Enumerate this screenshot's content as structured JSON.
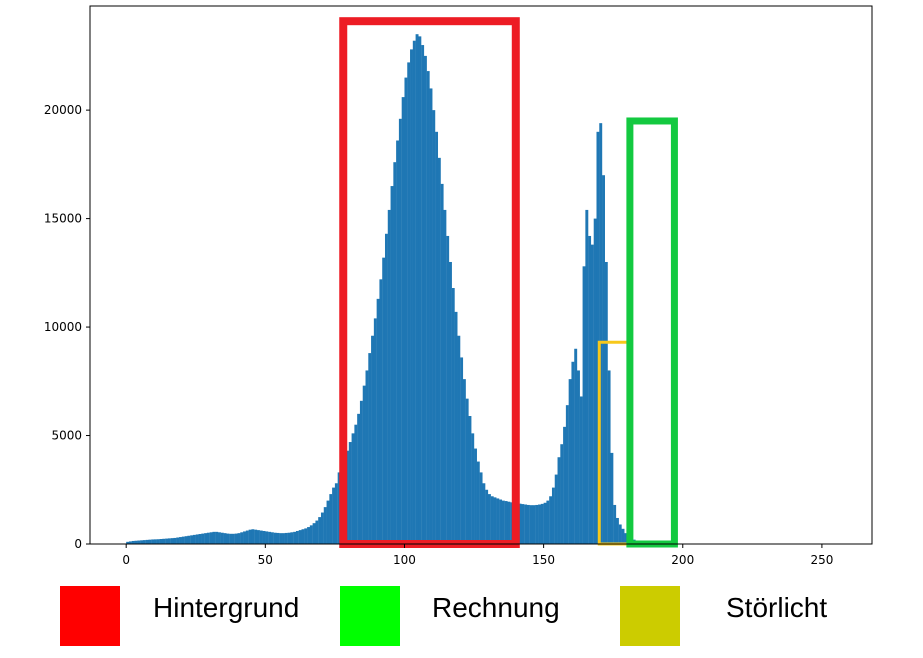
{
  "chart_data": {
    "type": "bar",
    "title": "",
    "xlabel": "",
    "ylabel": "",
    "xlim": [
      -13,
      268
    ],
    "ylim": [
      0,
      24800
    ],
    "xticks": [
      0,
      50,
      100,
      150,
      200,
      250
    ],
    "xtick_labels": [
      "0",
      "50",
      "100",
      "150",
      "200",
      "250"
    ],
    "yticks": [
      0,
      5000,
      10000,
      15000,
      20000
    ],
    "ytick_labels": [
      "0",
      "5000",
      "10000",
      "15000",
      "20000"
    ],
    "grid": false,
    "bar_color": "#1f77b4",
    "bins_start": 0,
    "bin_width": 1,
    "values": [
      100,
      120,
      140,
      150,
      160,
      170,
      180,
      190,
      200,
      210,
      215,
      220,
      230,
      240,
      250,
      260,
      270,
      280,
      300,
      320,
      340,
      360,
      380,
      400,
      420,
      440,
      460,
      480,
      500,
      520,
      540,
      560,
      560,
      540,
      520,
      500,
      480,
      470,
      470,
      480,
      500,
      540,
      580,
      620,
      660,
      680,
      660,
      640,
      620,
      600,
      580,
      560,
      540,
      520,
      510,
      500,
      500,
      510,
      520,
      540,
      560,
      600,
      640,
      680,
      720,
      780,
      860,
      960,
      1080,
      1240,
      1450,
      1700,
      2000,
      2300,
      2600,
      2800,
      3300,
      3700,
      4000,
      4300,
      4700,
      5100,
      5500,
      6000,
      6600,
      7300,
      8000,
      8800,
      9600,
      10400,
      11300,
      12200,
      13200,
      14300,
      15400,
      16500,
      17600,
      18600,
      19600,
      20600,
      21500,
      22200,
      22800,
      23200,
      23500,
      23400,
      23000,
      22500,
      21800,
      21000,
      20000,
      19000,
      17800,
      16600,
      15400,
      14200,
      13000,
      11800,
      10700,
      9600,
      8600,
      7600,
      6700,
      5900,
      5100,
      4400,
      3800,
      3300,
      2800,
      2500,
      2300,
      2200,
      2150,
      2100,
      2050,
      2000,
      1980,
      1950,
      1920,
      1900,
      1880,
      1860,
      1840,
      1820,
      1800,
      1790,
      1790,
      1800,
      1820,
      1850,
      1900,
      2000,
      2200,
      2600,
      3200,
      4000,
      4600,
      5400,
      6400,
      7600,
      8400,
      9000,
      8000,
      6800,
      12800,
      15400,
      14200,
      13800,
      15000,
      19000,
      19400,
      17000,
      13000,
      8000,
      4200,
      1800,
      1200,
      900,
      700,
      500,
      380,
      280,
      200,
      150,
      110,
      80,
      60,
      45,
      35,
      25,
      20,
      15,
      10,
      8,
      6,
      5,
      4,
      3,
      2,
      1
    ],
    "annotations": [
      {
        "name": "background-region-box",
        "x": [
          78,
          140
        ],
        "y": [
          0,
          24100
        ],
        "color": "#ed1c24"
      },
      {
        "name": "stray-light-region-box",
        "x": [
          170,
          181
        ],
        "y": [
          0,
          9300
        ],
        "color": "#f7c81b"
      },
      {
        "name": "invoice-region-box",
        "x": [
          181,
          197
        ],
        "y": [
          0,
          19500
        ],
        "color": "#13c940"
      }
    ]
  },
  "legend": {
    "items": [
      {
        "label": "Hintergrund",
        "color": "#ff0000"
      },
      {
        "label": "Rechnung",
        "color": "#00ff00"
      },
      {
        "label": "Störlicht",
        "color": "#cccc00"
      }
    ]
  }
}
